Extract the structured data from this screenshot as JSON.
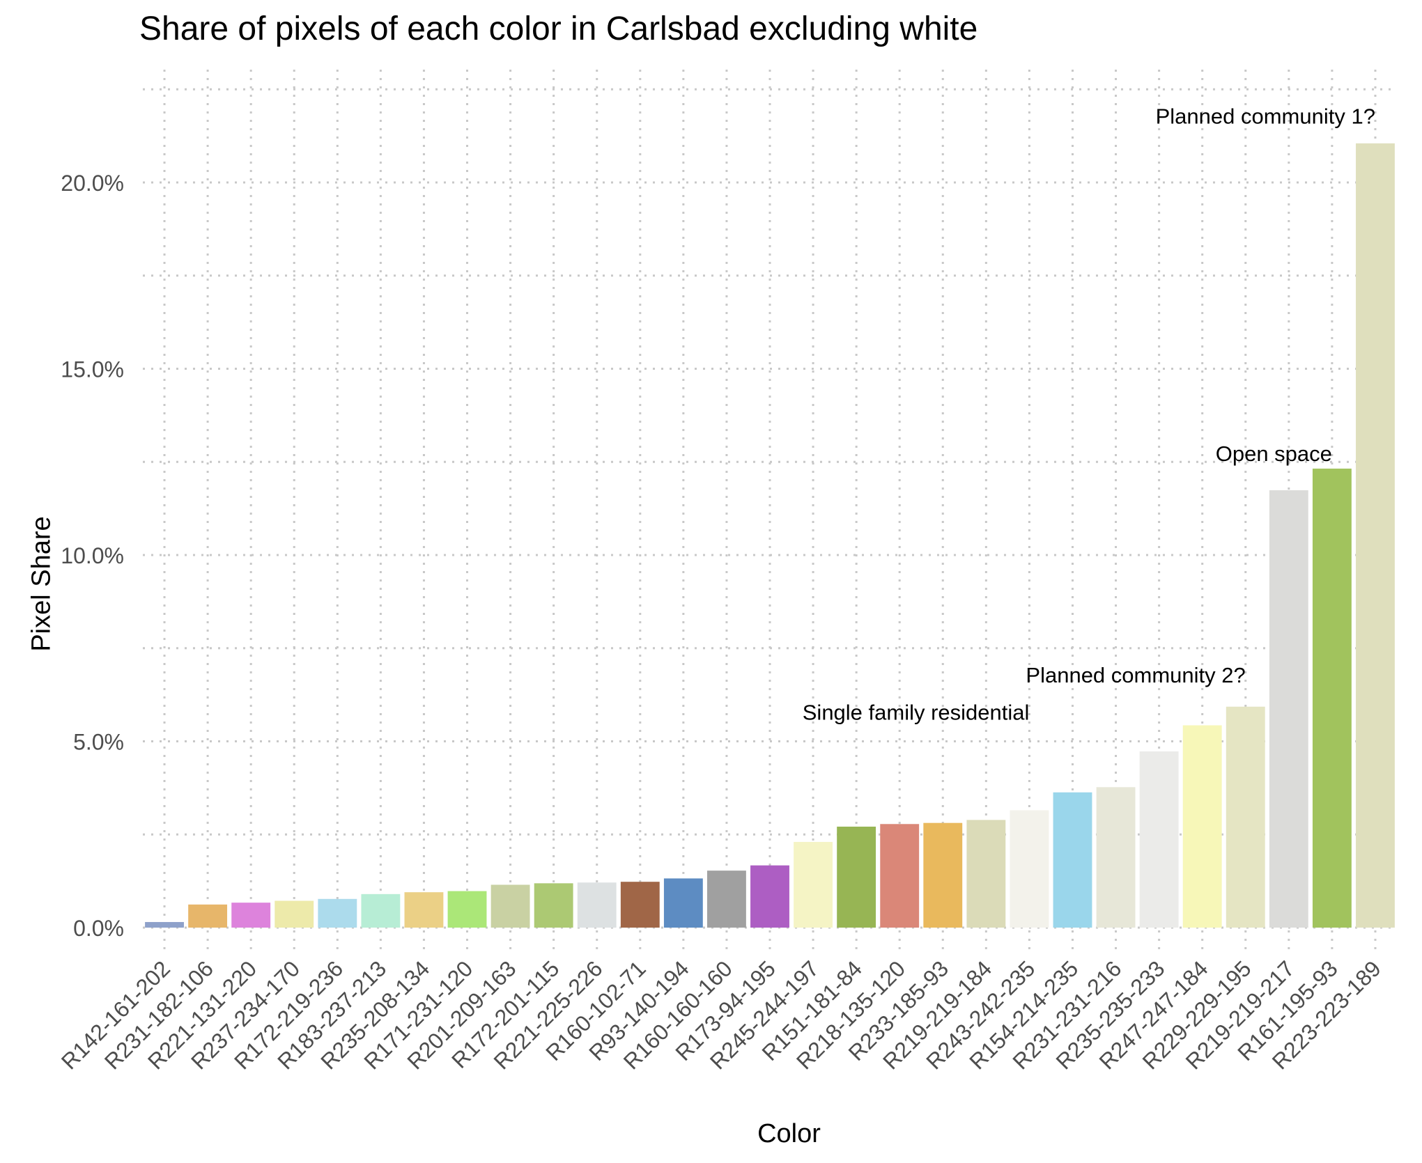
{
  "chart_data": {
    "type": "bar",
    "title": "Share of pixels of each color in Carlsbad excluding white",
    "xlabel": "Color",
    "ylabel": "Pixel Share",
    "ylim": [
      0,
      22.5
    ],
    "yticks": [
      0,
      5,
      10,
      15,
      20
    ],
    "ytick_labels": [
      "0.0%",
      "5.0%",
      "10.0%",
      "15.0%",
      "20.0%"
    ],
    "grid": true,
    "legend": "none",
    "categories": [
      "R142-161-202",
      "R231-182-106",
      "R221-131-220",
      "R237-234-170",
      "R172-219-236",
      "R183-237-213",
      "R235-208-134",
      "R171-231-120",
      "R201-209-163",
      "R172-201-115",
      "R221-225-226",
      "R160-102-71",
      "R93-140-194",
      "R160-160-160",
      "R173-94-195",
      "R245-244-197",
      "R151-181-84",
      "R218-135-120",
      "R233-185-93",
      "R219-219-184",
      "R243-242-235",
      "R154-214-235",
      "R231-231-216",
      "R235-235-233",
      "R247-247-184",
      "R229-229-195",
      "R219-219-217",
      "R161-195-93",
      "R223-223-189"
    ],
    "values": [
      0.15,
      0.62,
      0.67,
      0.72,
      0.77,
      0.9,
      0.95,
      0.98,
      1.15,
      1.19,
      1.21,
      1.23,
      1.32,
      1.53,
      1.67,
      2.3,
      2.71,
      2.78,
      2.81,
      2.89,
      3.15,
      3.63,
      3.77,
      4.73,
      5.43,
      5.93,
      11.74,
      12.32,
      21.05
    ],
    "colors": [
      "#8EA1CA",
      "#E7B66A",
      "#DD83DC",
      "#EDEAAA",
      "#ACDBEC",
      "#B7EDD5",
      "#EBD086",
      "#ABE778",
      "#C9D1A3",
      "#ACC973",
      "#DDE1E2",
      "#A06647",
      "#5D8CC2",
      "#A0A0A0",
      "#AD5EC3",
      "#F5F4C5",
      "#97B554",
      "#DA8778",
      "#E9B95D",
      "#DBDBB8",
      "#F3F2EB",
      "#9AD6EB",
      "#E7E7D8",
      "#EBEBE9",
      "#F7F7B8",
      "#E5E5C3",
      "#DBDBD9",
      "#A1C35D",
      "#DFDFBD"
    ],
    "annotations": [
      {
        "text": "Planned community 1?",
        "x_index": 28,
        "y": 21.8
      },
      {
        "text": "Open space",
        "x_index": 27,
        "y": 12.75
      },
      {
        "text": "Planned community 2?",
        "x_index": 25,
        "y": 6.8
      },
      {
        "text": "Single family residential",
        "x_index": 20,
        "y": 5.8
      }
    ]
  }
}
